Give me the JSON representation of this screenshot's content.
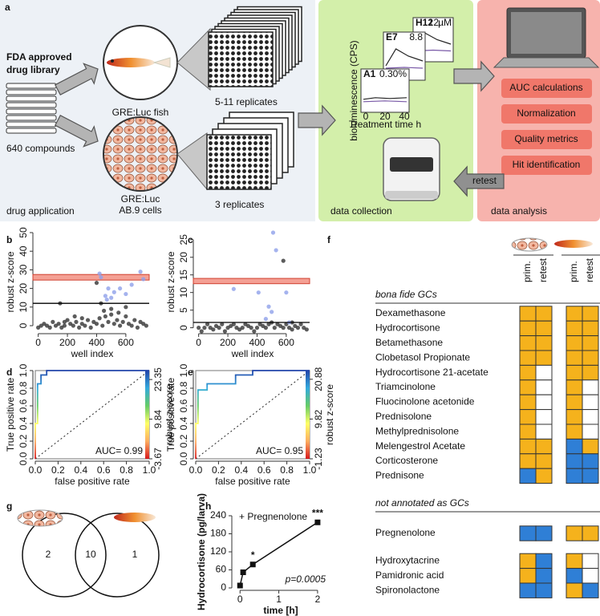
{
  "panel_labels": [
    "a",
    "b",
    "c",
    "d",
    "e",
    "f",
    "g",
    "h"
  ],
  "panel_a": {
    "library": [
      "FDA approved",
      "drug library"
    ],
    "compounds": "640 compounds",
    "fish": "GRE:Luc fish",
    "cells": [
      "GRE:Luc",
      "AB.9 cells"
    ],
    "fish_replicates": "5-11 replicates",
    "cell_replicates": "3 replicates",
    "stages": [
      "drug application",
      "data collection",
      "data analysis"
    ],
    "analysis_steps": [
      "AUC calculations",
      "Normalization",
      "Quality metrics",
      "Hit identification"
    ],
    "retest": "retest",
    "mini_plots": [
      {
        "well": "H12",
        "conc": "12",
        "unit": "µM"
      },
      {
        "well": "E7",
        "conc": "8.8"
      },
      {
        "well": "A1",
        "conc": "0.30%"
      }
    ],
    "mini_ylabel": "bioluminescence (CPS)",
    "mini_xlabel": "Treatment time h",
    "mini_xticks": [
      "0",
      "20",
      "40"
    ]
  },
  "chart_data": [
    {
      "type": "scatter",
      "xlabel": "well index",
      "ylabel": "robust z-score",
      "xlim": [
        -20,
        760
      ],
      "ylim": [
        -3,
        50
      ],
      "xticks": [
        0,
        200,
        400,
        600
      ],
      "yticks": [
        0,
        10,
        20,
        30,
        40,
        50
      ],
      "band": [
        24.5,
        27.5
      ],
      "band_color": "#f08070",
      "threshold": 12,
      "series": [
        {
          "color": "#333333",
          "x": [
            0,
            20,
            40,
            60,
            80,
            100,
            120,
            140,
            160,
            180,
            200,
            220,
            240,
            260,
            280,
            300,
            320,
            340,
            360,
            380,
            400,
            420,
            440,
            460,
            480,
            500,
            520,
            540,
            560,
            580,
            600,
            620,
            640,
            660,
            680,
            700,
            720,
            740,
            150,
            180,
            250,
            300,
            400,
            430,
            450,
            500,
            550,
            600
          ],
          "values": [
            -1,
            0,
            1,
            0,
            -1,
            2,
            0,
            1,
            -1,
            0,
            3,
            1,
            0,
            2,
            -1,
            1,
            0,
            3,
            -1,
            2,
            1,
            4,
            0,
            5,
            2,
            6,
            1,
            3,
            0,
            2,
            5,
            1,
            0,
            3,
            -1,
            2,
            1,
            0,
            12,
            2,
            5,
            4,
            23,
            12,
            8,
            9,
            7,
            10
          ]
        },
        {
          "color": "#8fa0ea",
          "x": [
            420,
            430,
            460,
            470,
            480,
            500,
            520,
            560,
            600,
            640,
            700,
            720
          ],
          "values": [
            28,
            26,
            16,
            14,
            20,
            15,
            18,
            20,
            17,
            22,
            29,
            25
          ]
        }
      ]
    },
    {
      "type": "scatter",
      "xlabel": "well index",
      "ylabel": "robust z-score",
      "xlim": [
        -20,
        760
      ],
      "ylim": [
        -1,
        27
      ],
      "xticks": [
        0,
        200,
        400,
        600
      ],
      "yticks": [
        0,
        5,
        10,
        15,
        20,
        25
      ],
      "band": [
        12.5,
        14
      ],
      "band_color": "#f08070",
      "threshold": 1.5,
      "series": [
        {
          "color": "#333333",
          "x": [
            0,
            20,
            40,
            60,
            80,
            100,
            120,
            140,
            160,
            180,
            200,
            220,
            240,
            260,
            280,
            300,
            320,
            340,
            360,
            380,
            400,
            420,
            440,
            460,
            480,
            500,
            520,
            540,
            560,
            580,
            600,
            620,
            640,
            660,
            680,
            700,
            720,
            740,
            580,
            640
          ],
          "values": [
            0,
            -1,
            0,
            1,
            0,
            -0.5,
            0.5,
            0,
            1,
            -1,
            0,
            0.5,
            1,
            0,
            -0.5,
            0,
            1,
            0.5,
            0,
            -1,
            0,
            1,
            0.5,
            0,
            1,
            1.5,
            0,
            1,
            0.5,
            0,
            1,
            0,
            -0.5,
            0.5,
            0,
            1,
            0,
            -0.5,
            19,
            1.5
          ]
        },
        {
          "color": "#8fa0ea",
          "x": [
            240,
            410,
            460,
            480,
            500,
            510,
            530,
            600,
            620
          ],
          "values": [
            11,
            10,
            2.5,
            6,
            4.5,
            27,
            22,
            10,
            1.5
          ]
        }
      ]
    },
    {
      "type": "line",
      "xlabel": "false positive rate",
      "ylabel": "True positive rate",
      "y2label": "robust z-score",
      "annotation": "AUC= 0.99",
      "xlim": [
        0,
        1
      ],
      "ylim": [
        0,
        1
      ],
      "xticks": [
        {
          "value": 0,
          "label": "0.0"
        },
        0.2,
        0.4,
        0.6,
        0.8,
        {
          "value": 1,
          "label": "1.0"
        }
      ],
      "yticks": [
        {
          "value": 0,
          "label": "0.0"
        },
        0.2,
        0.4,
        0.6,
        0.8,
        {
          "value": 1,
          "label": "1.0"
        }
      ],
      "y2lim": [
        -3.67,
        26.4
      ],
      "y2ticks": [
        -3.67,
        9.84,
        23.35
      ],
      "colorbar": [
        "#d7191c",
        "#fdae61",
        "#ffff66",
        "#66cc66",
        "#33aadd",
        "#2244aa"
      ],
      "x": [
        0,
        0,
        0.02,
        0.02,
        0.05,
        0.05,
        0.1,
        0.1,
        1
      ],
      "values": [
        0,
        0.4,
        0.4,
        0.85,
        0.85,
        0.95,
        0.95,
        1,
        1
      ]
    },
    {
      "type": "line",
      "xlabel": "false positive rate",
      "ylabel": "True positive rate",
      "y2label": "robust z-score",
      "annotation": "AUC= 0.95",
      "xlim": [
        0,
        1
      ],
      "ylim": [
        0,
        1
      ],
      "xticks": [
        {
          "value": 0,
          "label": "0.0"
        },
        0.2,
        0.4,
        0.6,
        0.8,
        {
          "value": 1,
          "label": "1.0"
        }
      ],
      "yticks": [
        {
          "value": 0,
          "label": "0.0"
        },
        0.2,
        0.4,
        0.6,
        0.8,
        {
          "value": 1,
          "label": "1.0"
        }
      ],
      "y2lim": [
        -1.23,
        23.3
      ],
      "y2ticks": [
        -1.23,
        9.82,
        20.88
      ],
      "colorbar": [
        "#d7191c",
        "#fdae61",
        "#ffff66",
        "#66cc66",
        "#33aadd",
        "#2244aa"
      ],
      "x": [
        0,
        0,
        0.02,
        0.02,
        0.1,
        0.1,
        0.35,
        0.35,
        0.5,
        0.5,
        1
      ],
      "values": [
        0,
        0.4,
        0.4,
        0.78,
        0.78,
        0.85,
        0.85,
        0.95,
        0.95,
        1,
        1
      ]
    },
    {
      "type": "timecourse",
      "xlabel": "time [h]",
      "ylabel": "Hydrocortisone (pg/larva)",
      "legend_text": "+ Pregnenolone",
      "p_text": "p=0.0005",
      "xlim": [
        -0.15,
        2.25
      ],
      "ylim": [
        0,
        240
      ],
      "xticks": [
        0,
        1,
        2
      ],
      "yticks": [
        0,
        60,
        120,
        180,
        240
      ],
      "x": [
        0,
        0.08,
        0.33,
        2
      ],
      "values": [
        8,
        52,
        78,
        218
      ],
      "point_labels": [
        null,
        null,
        "*",
        "***"
      ],
      "color": "#111111"
    }
  ],
  "panel_f": {
    "column_headers": [
      "prim.",
      "retest",
      "prim.",
      "retest"
    ],
    "sections": [
      {
        "title": "bona fide GCs",
        "rows": [
          {
            "name": "Dexamethasone",
            "cells": [
              "#f5b21c",
              "#f5b21c",
              "#f5b21c",
              "#f5b21c"
            ]
          },
          {
            "name": "Hydrocortisone",
            "cells": [
              "#f5b21c",
              "#f5b21c",
              "#f5b21c",
              "#f5b21c"
            ]
          },
          {
            "name": "Betamethasone",
            "cells": [
              "#f5b21c",
              "#f5b21c",
              "#f5b21c",
              "#f5b21c"
            ]
          },
          {
            "name": "Clobetasol Propionate",
            "cells": [
              "#f5b21c",
              "#f5b21c",
              "#f5b21c",
              "#f5b21c"
            ]
          },
          {
            "name": "Hydrocortisone 21-acetate",
            "cells": [
              "#f5b21c",
              "#ffffff",
              "#f5b21c",
              "#f5b21c"
            ]
          },
          {
            "name": "Triamcinolone",
            "cells": [
              "#f5b21c",
              "#ffffff",
              "#f5b21c",
              "#ffffff"
            ]
          },
          {
            "name": "Fluocinolone acetonide",
            "cells": [
              "#f5b21c",
              "#ffffff",
              "#f5b21c",
              "#ffffff"
            ]
          },
          {
            "name": "Prednisolone",
            "cells": [
              "#f5b21c",
              "#ffffff",
              "#f5b21c",
              "#ffffff"
            ]
          },
          {
            "name": "Methylprednisolone",
            "cells": [
              "#f5b21c",
              "#ffffff",
              "#f5b21c",
              "#ffffff"
            ]
          },
          {
            "name": "Melengestrol Acetate",
            "cells": [
              "#f5b21c",
              "#f5b21c",
              "#2f7fd6",
              "#f5b21c"
            ]
          },
          {
            "name": "Corticosterone",
            "cells": [
              "#f5b21c",
              "#f5b21c",
              "#2f7fd6",
              "#2f7fd6"
            ]
          },
          {
            "name": "Prednisone",
            "cells": [
              "#2f7fd6",
              "#f5b21c",
              "#2f7fd6",
              "#2f7fd6"
            ]
          }
        ]
      },
      {
        "title": "not annotated as GCs",
        "rows": [
          {
            "name": "Pregnenolone",
            "cells": [
              "#2f7fd6",
              "#2f7fd6",
              "#f5b21c",
              "#f5b21c"
            ]
          },
          {
            "name": "Hydroxytacrine",
            "color": "#a9b0a0",
            "cells": [
              "#f5b21c",
              "#2f7fd6",
              "#f5b21c",
              "#ffffff"
            ]
          },
          {
            "name": "Pamidronic acid",
            "color": "#a9b0a0",
            "cells": [
              "#f5b21c",
              "#2f7fd6",
              "#2f7fd6",
              "#ffffff"
            ]
          },
          {
            "name": "Spironolactone",
            "color": "#a9b0a0",
            "cells": [
              "#2f7fd6",
              "#2f7fd6",
              "#f5b21c",
              "#2f7fd6"
            ]
          }
        ]
      }
    ]
  },
  "panel_g": {
    "counts": [
      2,
      10,
      1
    ],
    "count_colors": [
      "#222222",
      "#222222",
      "#e02020"
    ]
  }
}
